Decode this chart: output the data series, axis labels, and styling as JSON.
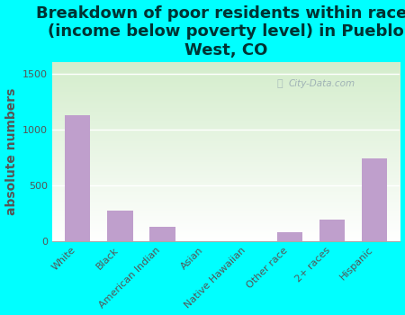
{
  "title": "Breakdown of poor residents within races\n(income below poverty level) in Pueblo\nWest, CO",
  "categories": [
    "White",
    "Black",
    "American Indian",
    "Asian",
    "Native Hawaiian",
    "Other race",
    "2+ races",
    "Hispanic"
  ],
  "values": [
    1130,
    270,
    130,
    0,
    0,
    80,
    190,
    740
  ],
  "bar_color": "#bf9fcc",
  "ylabel": "absolute numbers",
  "ylim": [
    0,
    1600
  ],
  "yticks": [
    0,
    500,
    1000,
    1500
  ],
  "bg_color": "#00ffff",
  "plot_bg_top_left": "#d4edcc",
  "plot_bg_bottom": "#ffffff",
  "watermark": "City-Data.com",
  "title_fontsize": 13,
  "title_color": "#003333",
  "ylabel_fontsize": 10,
  "ylabel_color": "#555555",
  "tick_fontsize": 8,
  "tick_color": "#555555"
}
